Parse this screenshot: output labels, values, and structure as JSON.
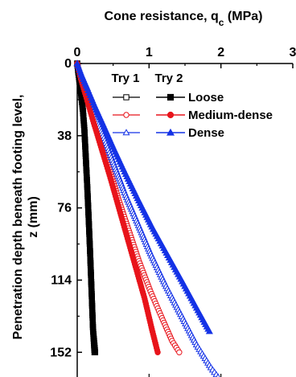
{
  "chart_data": {
    "type": "scatter",
    "title": "",
    "x_axis": {
      "label_main": "Cone resistance, q",
      "label_sub": "c",
      "label_unit": " (MPa)",
      "position": "top",
      "range": [
        0,
        3
      ],
      "ticks": [
        "0",
        "1",
        "2",
        "3"
      ]
    },
    "y_axis": {
      "label_line1": "Penetration depth beneath footing level,",
      "label_line2": "z (mm)",
      "inverted": true,
      "range": [
        0,
        165
      ],
      "ticks": [
        "0",
        "38",
        "76",
        "114",
        "152"
      ]
    },
    "legend": {
      "position": "top-right",
      "header_try1": "Try 1",
      "header_try2": "Try 2",
      "try1_marker": "open",
      "try2_marker": "filled"
    },
    "series": [
      {
        "name": "Loose",
        "try": 1,
        "color": "#000000",
        "marker": "square",
        "x": [
          0.0,
          0.02,
          0.04,
          0.06,
          0.08,
          0.1,
          0.12,
          0.14,
          0.16,
          0.18,
          0.2,
          0.22,
          0.24
        ],
        "y": [
          0,
          6,
          12,
          18,
          25,
          35,
          50,
          65,
          82,
          100,
          120,
          140,
          152
        ]
      },
      {
        "name": "Loose",
        "try": 2,
        "color": "#000000",
        "marker": "square",
        "x": [
          0.0,
          0.02,
          0.04,
          0.06,
          0.08,
          0.1,
          0.12,
          0.14,
          0.16,
          0.18,
          0.2,
          0.22,
          0.25
        ],
        "y": [
          0,
          6,
          12,
          18,
          25,
          35,
          50,
          65,
          82,
          100,
          120,
          140,
          152
        ]
      },
      {
        "name": "Medium-dense",
        "try": 1,
        "color": "#e8141b",
        "marker": "circle",
        "x": [
          0.0,
          0.05,
          0.12,
          0.22,
          0.34,
          0.46,
          0.58,
          0.72,
          0.86,
          1.02,
          1.18,
          1.32,
          1.42
        ],
        "y": [
          0,
          8,
          16,
          28,
          42,
          57,
          72,
          88,
          104,
          120,
          134,
          146,
          152
        ]
      },
      {
        "name": "Medium-dense",
        "try": 2,
        "color": "#e8141b",
        "marker": "circle",
        "x": [
          0.0,
          0.05,
          0.12,
          0.22,
          0.34,
          0.46,
          0.58,
          0.7,
          0.82,
          0.94,
          1.04,
          1.12
        ],
        "y": [
          0,
          8,
          17,
          30,
          45,
          60,
          76,
          92,
          108,
          124,
          140,
          152
        ]
      },
      {
        "name": "Dense",
        "try": 1,
        "color": "#1432e6",
        "marker": "triangle",
        "x": [
          0.0,
          0.06,
          0.14,
          0.24,
          0.36,
          0.5,
          0.66,
          0.84,
          1.02,
          1.22,
          1.44,
          1.66,
          1.86,
          1.96
        ],
        "y": [
          0,
          8,
          16,
          26,
          38,
          52,
          68,
          84,
          100,
          116,
          132,
          148,
          160,
          165
        ]
      },
      {
        "name": "Dense",
        "try": 2,
        "color": "#1432e6",
        "marker": "triangle",
        "x": [
          0.0,
          0.06,
          0.14,
          0.24,
          0.36,
          0.5,
          0.66,
          0.84,
          1.04,
          1.26,
          1.48,
          1.68,
          1.84
        ],
        "y": [
          0,
          6,
          13,
          22,
          32,
          44,
          57,
          71,
          86,
          101,
          116,
          130,
          141
        ]
      }
    ]
  }
}
